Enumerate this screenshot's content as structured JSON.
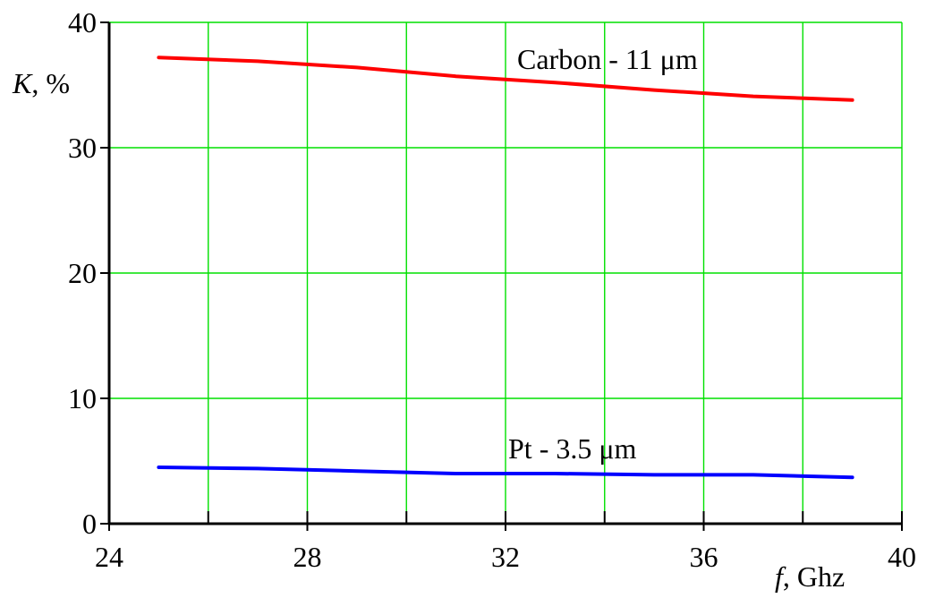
{
  "chart_data": {
    "type": "line",
    "title": "",
    "xlabel_var": "f",
    "xlabel_unit": ",  Ghz",
    "ylabel_var": "K",
    "ylabel_unit": ", %",
    "xlim": [
      24,
      40
    ],
    "ylim": [
      0,
      40
    ],
    "x_ticks": [
      24,
      28,
      32,
      36,
      40
    ],
    "x_minor_ticks": [
      26,
      30,
      34,
      38
    ],
    "y_ticks": [
      0,
      10,
      20,
      30,
      40
    ],
    "grid": true,
    "colors": {
      "grid": "#00e000",
      "axis": "#000000"
    },
    "series": [
      {
        "name": "Carbon - 11 μm",
        "color": "#ff0000",
        "x": [
          25,
          27,
          29,
          31,
          33,
          35,
          37,
          39
        ],
        "y": [
          37.2,
          36.9,
          36.4,
          35.7,
          35.2,
          34.6,
          34.1,
          33.8
        ]
      },
      {
        "name": "Pt - 3.5 μm",
        "color": "#0000ff",
        "x": [
          25,
          27,
          29,
          31,
          33,
          35,
          37,
          39
        ],
        "y": [
          4.5,
          4.4,
          4.2,
          4.0,
          4.0,
          3.9,
          3.9,
          3.7
        ]
      }
    ]
  }
}
